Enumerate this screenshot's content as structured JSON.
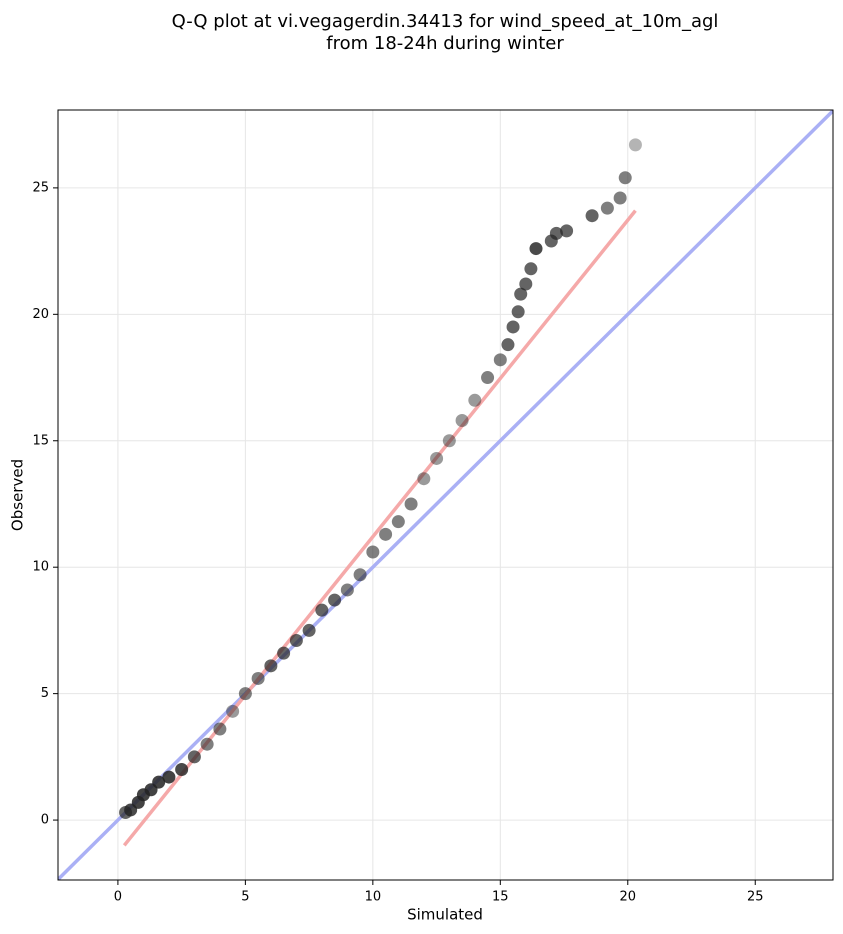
{
  "chart_data": {
    "type": "scatter",
    "title_lines": [
      "Q-Q plot at vi.vegagerdin.34413 for wind_speed_at_10m_agl",
      "from 18-24h during winter"
    ],
    "x_label": "Simulated",
    "y_label": "Observed",
    "xlim": [
      -2.35,
      28.05
    ],
    "ylim": [
      -2.37,
      28.08
    ],
    "xticks": [
      0,
      5,
      10,
      15,
      20,
      25
    ],
    "yticks": [
      0,
      5,
      10,
      15,
      20,
      25
    ],
    "grid": true,
    "points": {
      "color": "#222222",
      "x": [
        0.3,
        0.5,
        0.8,
        1.0,
        1.3,
        1.6,
        2.0,
        2.5,
        3.0,
        3.5,
        4.0,
        4.5,
        5.0,
        5.5,
        6.0,
        6.5,
        7.0,
        7.5,
        8.0,
        8.5,
        9.0,
        9.5,
        10.0,
        10.5,
        11.0,
        11.5,
        12.0,
        12.5,
        13.0,
        13.5,
        14.0,
        14.5,
        15.0,
        15.3,
        15.5,
        15.7,
        15.8,
        16.0,
        16.2,
        16.4,
        17.0,
        17.2,
        17.6,
        18.6,
        19.2,
        19.7,
        19.9,
        20.3
      ],
      "y": [
        0.3,
        0.4,
        0.7,
        1.0,
        1.2,
        1.5,
        1.7,
        2.0,
        2.5,
        3.0,
        3.6,
        4.3,
        5.0,
        5.6,
        6.1,
        6.6,
        7.1,
        7.5,
        8.3,
        8.7,
        9.1,
        9.7,
        10.6,
        11.3,
        11.8,
        12.5,
        13.5,
        14.3,
        15.0,
        15.8,
        16.6,
        17.5,
        18.2,
        18.8,
        19.5,
        20.1,
        20.8,
        21.2,
        21.8,
        22.6,
        22.9,
        23.2,
        23.3,
        23.9,
        24.2,
        24.6,
        25.4,
        26.7
      ]
    },
    "lines": [
      {
        "color": "#aab0f5",
        "x": [
          -2.35,
          28.05
        ],
        "y": [
          -2.35,
          28.05
        ]
      },
      {
        "color": "#f5a9a9",
        "x": [
          0.25,
          20.3
        ],
        "y": [
          -1.0,
          24.1
        ]
      }
    ]
  }
}
